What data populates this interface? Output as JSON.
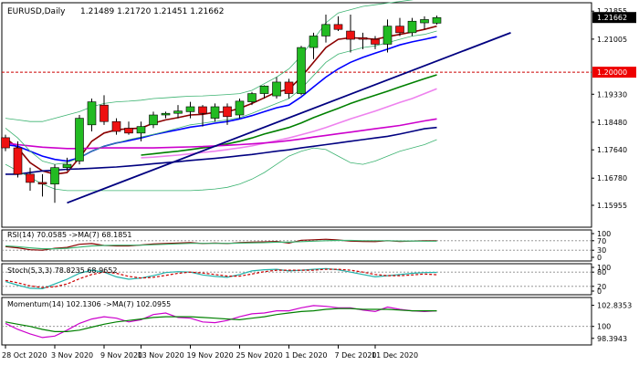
{
  "chart_data": [
    {
      "id": "main",
      "type": "candlestick",
      "title": "EURUSD,Daily",
      "ohlc_header": "1.21489 1.21720 1.21451 1.21662",
      "ylim": [
        1.154,
        1.22
      ],
      "y_ticks": [
        "1.21855",
        "1.21662",
        "1.21005",
        "1.20000",
        "1.19330",
        "1.18480",
        "1.17640",
        "1.16780",
        "1.15955"
      ],
      "y_tick_values": [
        1.21855,
        1.21662,
        1.21005,
        1.2,
        1.1933,
        1.1848,
        1.1764,
        1.1678,
        1.15955
      ],
      "current_price": "1.21662",
      "level_label": "1.20000",
      "level": 1.2,
      "candles": [
        {
          "o": 1.1801,
          "h": 1.181,
          "l": 1.176,
          "c": 1.177
        },
        {
          "o": 1.177,
          "h": 1.179,
          "l": 1.168,
          "c": 1.169
        },
        {
          "o": 1.169,
          "h": 1.171,
          "l": 1.164,
          "c": 1.1665
        },
        {
          "o": 1.1665,
          "h": 1.169,
          "l": 1.1622,
          "c": 1.166
        },
        {
          "o": 1.166,
          "h": 1.172,
          "l": 1.1603,
          "c": 1.171
        },
        {
          "o": 1.171,
          "h": 1.174,
          "l": 1.17,
          "c": 1.172
        },
        {
          "o": 1.173,
          "h": 1.187,
          "l": 1.172,
          "c": 1.186
        },
        {
          "o": 1.184,
          "h": 1.192,
          "l": 1.182,
          "c": 1.191
        },
        {
          "o": 1.19,
          "h": 1.193,
          "l": 1.184,
          "c": 1.185
        },
        {
          "o": 1.185,
          "h": 1.186,
          "l": 1.181,
          "c": 1.182
        },
        {
          "o": 1.183,
          "h": 1.185,
          "l": 1.181,
          "c": 1.1815
        },
        {
          "o": 1.1815,
          "h": 1.185,
          "l": 1.179,
          "c": 1.1835
        },
        {
          "o": 1.184,
          "h": 1.188,
          "l": 1.183,
          "c": 1.187
        },
        {
          "o": 1.187,
          "h": 1.188,
          "l": 1.186,
          "c": 1.1875
        },
        {
          "o": 1.1875,
          "h": 1.19,
          "l": 1.186,
          "c": 1.1882
        },
        {
          "o": 1.188,
          "h": 1.191,
          "l": 1.186,
          "c": 1.1895
        },
        {
          "o": 1.1895,
          "h": 1.19,
          "l": 1.1835,
          "c": 1.1875
        },
        {
          "o": 1.186,
          "h": 1.1905,
          "l": 1.185,
          "c": 1.1895
        },
        {
          "o": 1.1895,
          "h": 1.1905,
          "l": 1.184,
          "c": 1.1865
        },
        {
          "o": 1.187,
          "h": 1.192,
          "l": 1.186,
          "c": 1.1912
        },
        {
          "o": 1.191,
          "h": 1.194,
          "l": 1.19,
          "c": 1.1935
        },
        {
          "o": 1.1935,
          "h": 1.196,
          "l": 1.192,
          "c": 1.1958
        },
        {
          "o": 1.1928,
          "h": 1.1985,
          "l": 1.192,
          "c": 1.197
        },
        {
          "o": 1.197,
          "h": 1.198,
          "l": 1.192,
          "c": 1.1935
        },
        {
          "o": 1.1935,
          "h": 1.208,
          "l": 1.193,
          "c": 1.2075
        },
        {
          "o": 1.2075,
          "h": 1.212,
          "l": 1.204,
          "c": 1.211
        },
        {
          "o": 1.211,
          "h": 1.2175,
          "l": 1.209,
          "c": 1.2145
        },
        {
          "o": 1.2145,
          "h": 1.217,
          "l": 1.2125,
          "c": 1.213
        },
        {
          "o": 1.2125,
          "h": 1.2175,
          "l": 1.206,
          "c": 1.21
        },
        {
          "o": 1.2105,
          "h": 1.212,
          "l": 1.207,
          "c": 1.21
        },
        {
          "o": 1.21,
          "h": 1.211,
          "l": 1.207,
          "c": 1.2085
        },
        {
          "o": 1.2085,
          "h": 1.216,
          "l": 1.206,
          "c": 1.214
        },
        {
          "o": 1.214,
          "h": 1.2165,
          "l": 1.211,
          "c": 1.212
        },
        {
          "o": 1.212,
          "h": 1.2165,
          "l": 1.211,
          "c": 1.2155
        },
        {
          "o": 1.215,
          "h": 1.217,
          "l": 1.213,
          "c": 1.216
        },
        {
          "o": 1.2149,
          "h": 1.2172,
          "l": 1.2145,
          "c": 1.2166
        }
      ],
      "ma_series": [
        {
          "color": "#8b0000",
          "values": [
            1.18,
            1.177,
            1.1725,
            1.17,
            1.169,
            1.1695,
            1.174,
            1.179,
            1.1815,
            1.1825,
            1.1828,
            1.183,
            1.1845,
            1.1855,
            1.1862,
            1.187,
            1.1872,
            1.1878,
            1.188,
            1.189,
            1.1905,
            1.1922,
            1.194,
            1.1948,
            1.1985,
            1.203,
            1.2075,
            1.21,
            1.2105,
            1.2103,
            1.21,
            1.2108,
            1.2115,
            1.2122,
            1.213,
            1.214
          ]
        },
        {
          "color": "#0000ff",
          "values": [
            1.178,
            1.1775,
            1.176,
            1.1745,
            1.1735,
            1.173,
            1.174,
            1.176,
            1.1775,
            1.1785,
            1.1792,
            1.18,
            1.181,
            1.1818,
            1.1825,
            1.1833,
            1.1838,
            1.1845,
            1.185,
            1.1858,
            1.1868,
            1.188,
            1.1892,
            1.19,
            1.1925,
            1.1955,
            1.1985,
            1.201,
            1.203,
            1.2045,
            1.2058,
            1.207,
            1.2083,
            1.2092,
            1.21,
            1.2108
          ]
        },
        {
          "color": "#008000",
          "values": [
            null,
            null,
            null,
            null,
            null,
            null,
            null,
            null,
            null,
            null,
            null,
            1.1748,
            1.1752,
            1.1756,
            1.176,
            1.1765,
            1.177,
            1.1775,
            1.1782,
            1.179,
            1.18,
            1.1812,
            1.1822,
            1.1832,
            1.1846,
            1.1862,
            1.1876,
            1.189,
            1.1905,
            1.1918,
            1.193,
            1.1942,
            1.1955,
            1.1968,
            1.198,
            1.1992
          ]
        },
        {
          "color": "#ee82ee",
          "values": [
            null,
            null,
            null,
            null,
            null,
            null,
            null,
            null,
            null,
            null,
            null,
            1.174,
            1.1742,
            1.1745,
            1.1748,
            1.1752,
            1.1756,
            1.176,
            1.1765,
            1.177,
            1.1776,
            1.1784,
            1.1792,
            1.18,
            1.181,
            1.182,
            1.1832,
            1.1845,
            1.1858,
            1.187,
            1.1882,
            1.1895,
            1.1908,
            1.192,
            1.1935,
            1.195
          ]
        },
        {
          "color": "#cc00cc",
          "values": [
            1.1785,
            1.178,
            1.1776,
            1.1772,
            1.177,
            1.1768,
            1.1768,
            1.1769,
            1.177,
            1.177,
            1.177,
            1.177,
            1.177,
            1.1771,
            1.1772,
            1.1773,
            1.1774,
            1.1776,
            1.1778,
            1.178,
            1.1782,
            1.1785,
            1.1788,
            1.1792,
            1.1797,
            1.1803,
            1.1808,
            1.1813,
            1.1818,
            1.1823,
            1.1828,
            1.1833,
            1.1838,
            1.1845,
            1.1852,
            1.1858
          ]
        },
        {
          "color": "#000080",
          "values": [
            1.169,
            1.169,
            1.1695,
            1.17,
            1.1702,
            1.1705,
            1.1706,
            1.1708,
            1.171,
            1.1712,
            1.1715,
            1.1718,
            1.1722,
            1.1725,
            1.1728,
            1.1732,
            1.1735,
            1.1738,
            1.1742,
            1.1746,
            1.175,
            1.1755,
            1.176,
            1.1764,
            1.177,
            1.1775,
            1.178,
            1.1785,
            1.179,
            1.1795,
            1.18,
            1.1805,
            1.1812,
            1.182,
            1.1828,
            1.1832
          ]
        },
        {
          "color": "#3cb371",
          "width": 0.8,
          "values": [
            1.186,
            1.1855,
            1.185,
            1.185,
            1.186,
            1.187,
            1.188,
            1.1895,
            1.1905,
            1.191,
            1.1912,
            1.1915,
            1.192,
            1.1922,
            1.1925,
            1.1927,
            1.1928,
            1.193,
            1.1932,
            1.1935,
            1.1945,
            1.1965,
            1.1985,
            1.201,
            1.205,
            1.21,
            1.215,
            1.218,
            1.219,
            1.22,
            1.2205,
            1.221,
            1.2215,
            1.222,
            1.2225,
            1.223
          ]
        },
        {
          "color": "#3cb371",
          "width": 0.8,
          "values": [
            1.172,
            1.17,
            1.168,
            1.166,
            1.1645,
            1.164,
            1.164,
            1.164,
            1.164,
            1.164,
            1.164,
            1.164,
            1.164,
            1.164,
            1.164,
            1.164,
            1.1642,
            1.1645,
            1.165,
            1.166,
            1.1675,
            1.1695,
            1.172,
            1.1745,
            1.176,
            1.177,
            1.1765,
            1.1745,
            1.1725,
            1.172,
            1.173,
            1.1745,
            1.176,
            1.177,
            1.178,
            1.1795
          ]
        },
        {
          "color": "#3cb371",
          "width": 0.8,
          "values": [
            1.183,
            1.18,
            1.176,
            1.173,
            1.172,
            1.1725,
            1.174,
            1.176,
            1.1775,
            1.1785,
            1.1795,
            1.1803,
            1.1811,
            1.182,
            1.183,
            1.184,
            1.1845,
            1.185,
            1.1855,
            1.1862,
            1.1875,
            1.189,
            1.1905,
            1.192,
            1.195,
            1.199,
            1.203,
            1.2055,
            1.2065,
            1.2075,
            1.208,
            1.209,
            1.21,
            1.211,
            1.2115,
            1.2125
          ]
        }
      ],
      "trendlines": [
        {
          "color": "#000080",
          "x0": 5,
          "y0": 1.1603,
          "x1": 41,
          "y1": 1.212
        }
      ]
    },
    {
      "id": "rsi",
      "type": "line",
      "header": "RSI(14) 70.0585 ->MA(7) 68.1851",
      "ylim": [
        0,
        100
      ],
      "y_ticks": [
        "100",
        "70",
        "30",
        "0"
      ],
      "y_tick_values": [
        100,
        70,
        30,
        0
      ],
      "levels": [
        70,
        30
      ],
      "series": [
        {
          "color": "#8b0000",
          "values": [
            45,
            40,
            32,
            30,
            38,
            42,
            55,
            58,
            50,
            48,
            48,
            52,
            56,
            58,
            60,
            62,
            58,
            60,
            58,
            62,
            64,
            65,
            67,
            60,
            72,
            74,
            76,
            73,
            68,
            67,
            66,
            70,
            67,
            69,
            70,
            70
          ]
        },
        {
          "color": "#3cb371",
          "values": [
            48,
            45,
            40,
            36,
            36,
            38,
            43,
            48,
            50,
            51,
            51,
            51,
            53,
            55,
            57,
            59,
            59,
            59,
            59,
            60,
            61,
            62,
            64,
            64,
            66,
            68,
            70,
            71,
            71,
            70,
            70,
            70,
            69,
            69,
            68,
            68
          ]
        }
      ]
    },
    {
      "id": "stoch",
      "type": "line",
      "header": "Stoch(5,3,3) 78.8235 68.9652",
      "ylim": [
        0,
        100
      ],
      "y_ticks": [
        "100",
        "80",
        "20",
        "0"
      ],
      "y_tick_values": [
        100,
        80,
        20,
        0
      ],
      "levels": [
        80,
        20
      ],
      "series": [
        {
          "color": "#20b2aa",
          "values": [
            40,
            25,
            12,
            10,
            30,
            50,
            75,
            88,
            80,
            60,
            50,
            55,
            65,
            78,
            82,
            80,
            68,
            62,
            58,
            70,
            85,
            90,
            92,
            85,
            88,
            92,
            95,
            90,
            80,
            70,
            60,
            65,
            70,
            75,
            78,
            79
          ]
        },
        {
          "color": "#cc0000",
          "dashed": true,
          "values": [
            45,
            35,
            22,
            15,
            18,
            30,
            52,
            70,
            80,
            75,
            62,
            55,
            58,
            66,
            75,
            80,
            76,
            70,
            63,
            63,
            72,
            82,
            88,
            88,
            88,
            88,
            92,
            92,
            88,
            80,
            70,
            65,
            65,
            68,
            72,
            69
          ]
        }
      ]
    },
    {
      "id": "momentum",
      "type": "line",
      "header": "Momentum(14) 102.1306 ->MA(7) 102.0955",
      "ylim": [
        98.0,
        103.4
      ],
      "y_ticks": [
        "102.8353",
        "100",
        "98.3943"
      ],
      "y_tick_values": [
        102.8353,
        100,
        98.3943
      ],
      "levels": [
        100
      ],
      "series": [
        {
          "color": "#cc00cc",
          "values": [
            100.4,
            99.6,
            99.0,
            98.5,
            98.7,
            99.5,
            100.4,
            101.0,
            101.3,
            101.1,
            100.6,
            100.9,
            101.6,
            101.8,
            101.2,
            101.1,
            100.6,
            100.5,
            100.8,
            101.3,
            101.7,
            101.8,
            102.1,
            102.1,
            102.5,
            102.8,
            102.7,
            102.5,
            102.5,
            102.2,
            102.0,
            102.6,
            102.3,
            102.1,
            102.0,
            102.1
          ]
        },
        {
          "color": "#008000",
          "values": [
            100.6,
            100.3,
            100.0,
            99.6,
            99.3,
            99.3,
            99.5,
            99.9,
            100.3,
            100.6,
            100.8,
            101.0,
            101.2,
            101.3,
            101.3,
            101.3,
            101.2,
            101.1,
            101.0,
            100.9,
            101.1,
            101.3,
            101.6,
            101.8,
            102.0,
            102.1,
            102.3,
            102.4,
            102.4,
            102.3,
            102.3,
            102.3,
            102.2,
            102.1,
            102.1,
            102.1
          ]
        }
      ]
    }
  ],
  "x_axis": {
    "labels": [
      "28 Oct 2020",
      "3 Nov 2020",
      "9 Nov 2020",
      "13 Nov 2020",
      "19 Nov 2020",
      "25 Nov 2020",
      "1 Dec 2020",
      "7 Dec 2020",
      "11 Dec 2020"
    ],
    "label_bar_index": [
      0,
      4,
      8,
      11,
      15,
      19,
      23,
      27,
      30
    ]
  },
  "colors": {
    "bull": "#22bb22",
    "bear": "#ee1111",
    "level_line": "#cc0000",
    "level_badge_bg": "#ee0000",
    "price_badge_bg": "#000000",
    "frame": "#000000",
    "dotted_level": "#888888"
  }
}
